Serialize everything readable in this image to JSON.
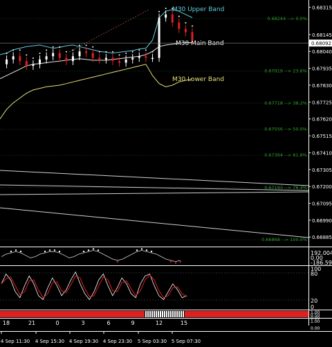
{
  "chart_data": {
    "type": "line",
    "symbol_note": "",
    "y_ticks": [
      "0.68315",
      "0.68145",
      "0.68040",
      "0.67935",
      "0.67830",
      "0.67725",
      "0.67620",
      "0.67515",
      "0.67410",
      "0.67305",
      "0.67200",
      "0.67095",
      "0.66990",
      "0.66885"
    ],
    "ylim": [
      0.6683,
      0.6836
    ],
    "current_price": "0.68092",
    "fib_levels": [
      {
        "label": "0.68244 --> 0.0%",
        "price": 0.68244
      },
      {
        "label": "0.67919 --> 23.6%",
        "price": 0.67919
      },
      {
        "label": "0.67718 --> 38.2%",
        "price": 0.67718
      },
      {
        "label": "0.67556 --> 50.0%",
        "price": 0.67556
      },
      {
        "label": "0.67394 --> 61.8%",
        "price": 0.67394
      },
      {
        "label": "0.67193 --> 76.4%",
        "price": 0.67193
      },
      {
        "label": "0.66868 --> 100.0%",
        "price": 0.66868
      }
    ],
    "band_labels": {
      "upper": "M30 Upper Band",
      "main": "M30 Main Band",
      "lower": "M30 Lower Band"
    },
    "x_labels": [
      "4 Sep 11:30",
      "4 Sep 15:30",
      "4 Sep 19:30",
      "4 Sep 23:30",
      "5 Sep 03:30",
      "5 Sep 07:30"
    ],
    "hour_labels": [
      "18",
      "21",
      "0",
      "3",
      "6",
      "9",
      "12",
      "15"
    ],
    "osc1": {
      "top": "192.0049",
      "mid": "0.00",
      "bottom": "-186.5941"
    },
    "osc2": {
      "top": "100",
      "l80": "80",
      "l20": "20",
      "bottom": "0"
    },
    "osc3": {
      "top": "1.00",
      "mid": "0.50",
      "bottom": "0.00"
    },
    "osc4": {
      "top": "1.00",
      "bottom": "0.00"
    },
    "upper_band": [
      0.6802,
      0.6803,
      0.6805,
      0.6806,
      0.6807,
      0.68075,
      0.6808,
      0.6807,
      0.6806,
      0.68065,
      0.68075,
      0.6808,
      0.6807,
      0.6806,
      0.6805,
      0.6804,
      0.68035,
      0.6803,
      0.68035,
      0.6804,
      0.68045,
      0.68055,
      0.6806,
      0.6811,
      0.6825,
      0.6829,
      0.683,
      0.6829,
      0.6827,
      0.6825
    ],
    "main_band": [
      0.6787,
      0.6789,
      0.6791,
      0.6793,
      0.6795,
      0.6796,
      0.67965,
      0.6797,
      0.67975,
      0.6798,
      0.67985,
      0.6799,
      0.67995,
      0.6799,
      0.67985,
      0.67985,
      0.67985,
      0.6799,
      0.67995,
      0.68,
      0.68005,
      0.6801,
      0.6802,
      0.6804,
      0.6807,
      0.6808,
      0.68085,
      0.6809,
      0.68095,
      0.68095
    ],
    "lower_band": [
      0.6762,
      0.6768,
      0.6772,
      0.6775,
      0.6778,
      0.678,
      0.6781,
      0.6782,
      0.67825,
      0.6783,
      0.6784,
      0.6785,
      0.6786,
      0.6787,
      0.6788,
      0.6789,
      0.679,
      0.6791,
      0.6792,
      0.6793,
      0.6794,
      0.6795,
      0.6796,
      0.6789,
      0.6784,
      0.6782,
      0.6783,
      0.6785,
      0.6786,
      0.6787
    ],
    "close": [
      0.6796,
      0.6799,
      0.6801,
      0.6798,
      0.6795,
      0.6796,
      0.6799,
      0.6801,
      0.6803,
      0.68,
      0.6798,
      0.6801,
      0.6804,
      0.6803,
      0.68,
      0.6799,
      0.68,
      0.6798,
      0.6797,
      0.6799,
      0.68,
      0.6801,
      0.68,
      0.68,
      0.6825,
      0.6827,
      0.6822,
      0.6818,
      0.6816,
      0.6811
    ]
  }
}
